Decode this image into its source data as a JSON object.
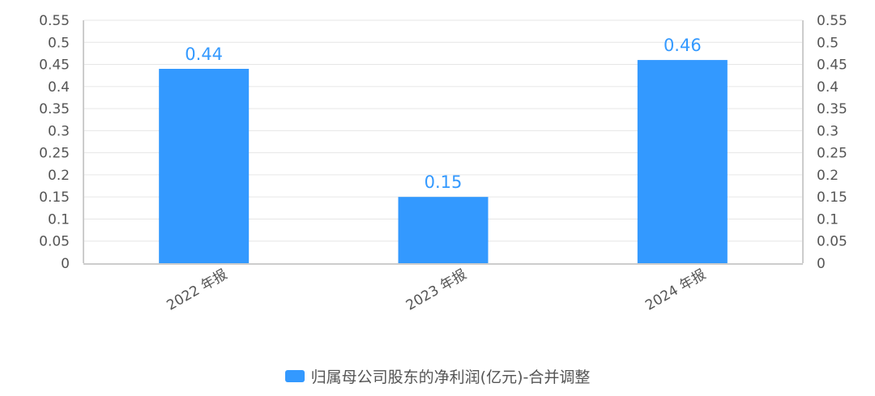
{
  "chart_data": {
    "type": "bar",
    "categories": [
      "2022 年报",
      "2023 年报",
      "2024 年报"
    ],
    "series": [
      {
        "name": "归属母公司股东的净利润(亿元)-合并调整",
        "values": [
          0.44,
          0.15,
          0.46
        ],
        "color": "#3399ff"
      }
    ],
    "data_labels": [
      "0.44",
      "0.15",
      "0.46"
    ],
    "ylim": [
      0,
      0.55
    ],
    "y_ticks": [
      "0",
      "0.05",
      "0.1",
      "0.15",
      "0.2",
      "0.25",
      "0.3",
      "0.35",
      "0.4",
      "0.45",
      "0.5",
      "0.55"
    ],
    "secondary_y_ticks": [
      "0",
      "0.05",
      "0.1",
      "0.15",
      "0.2",
      "0.25",
      "0.3",
      "0.35",
      "0.4",
      "0.45",
      "0.5",
      "0.55"
    ],
    "grid": true,
    "legend_position": "bottom-center",
    "title": "",
    "xlabel": "",
    "ylabel": ""
  },
  "colors": {
    "bar": "#3399ff",
    "data_label": "#3399ff",
    "tick_label": "#555555",
    "grid": "#e6e6e6",
    "axis": "#cccccc"
  }
}
